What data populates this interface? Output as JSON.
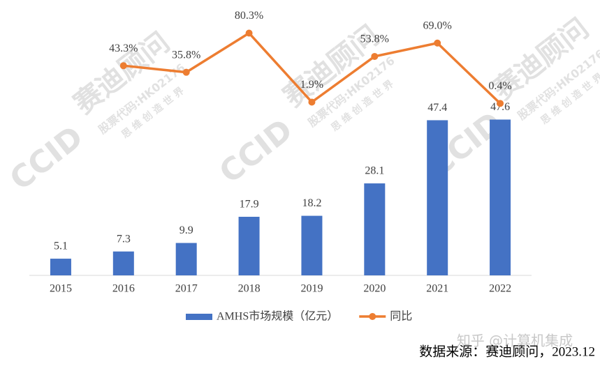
{
  "chart_data": {
    "type": "bar_line",
    "categories": [
      "2015",
      "2016",
      "2017",
      "2018",
      "2019",
      "2020",
      "2021",
      "2022"
    ],
    "series": [
      {
        "name": "AMHS市场规模（亿元）",
        "type": "bar",
        "color": "#4472c4",
        "values": [
          5.1,
          7.3,
          9.9,
          17.9,
          18.2,
          28.1,
          47.4,
          47.6
        ]
      },
      {
        "name": "同比",
        "type": "line",
        "axis": "y2",
        "color": "#ed7d31",
        "values": [
          null,
          43.3,
          35.8,
          80.3,
          1.9,
          53.8,
          69.0,
          0.4
        ],
        "value_labels": [
          null,
          "43.3%",
          "35.8%",
          "80.3%",
          "1.9%",
          "53.8%",
          "69.0%",
          "0.4%"
        ]
      }
    ],
    "ylim": [
      0,
      82
    ],
    "y2lim": [
      -195,
      110
    ],
    "grid": false,
    "legend": "bottom"
  },
  "watermark": {
    "logo": "CCID",
    "brand": "赛迪顾问",
    "stock": "股票代码:HK02176",
    "slogan": "思 维 创 造 世 界"
  },
  "credit": "知乎 @计算机集成",
  "source": "数据来源：赛迪顾问，2023.12"
}
